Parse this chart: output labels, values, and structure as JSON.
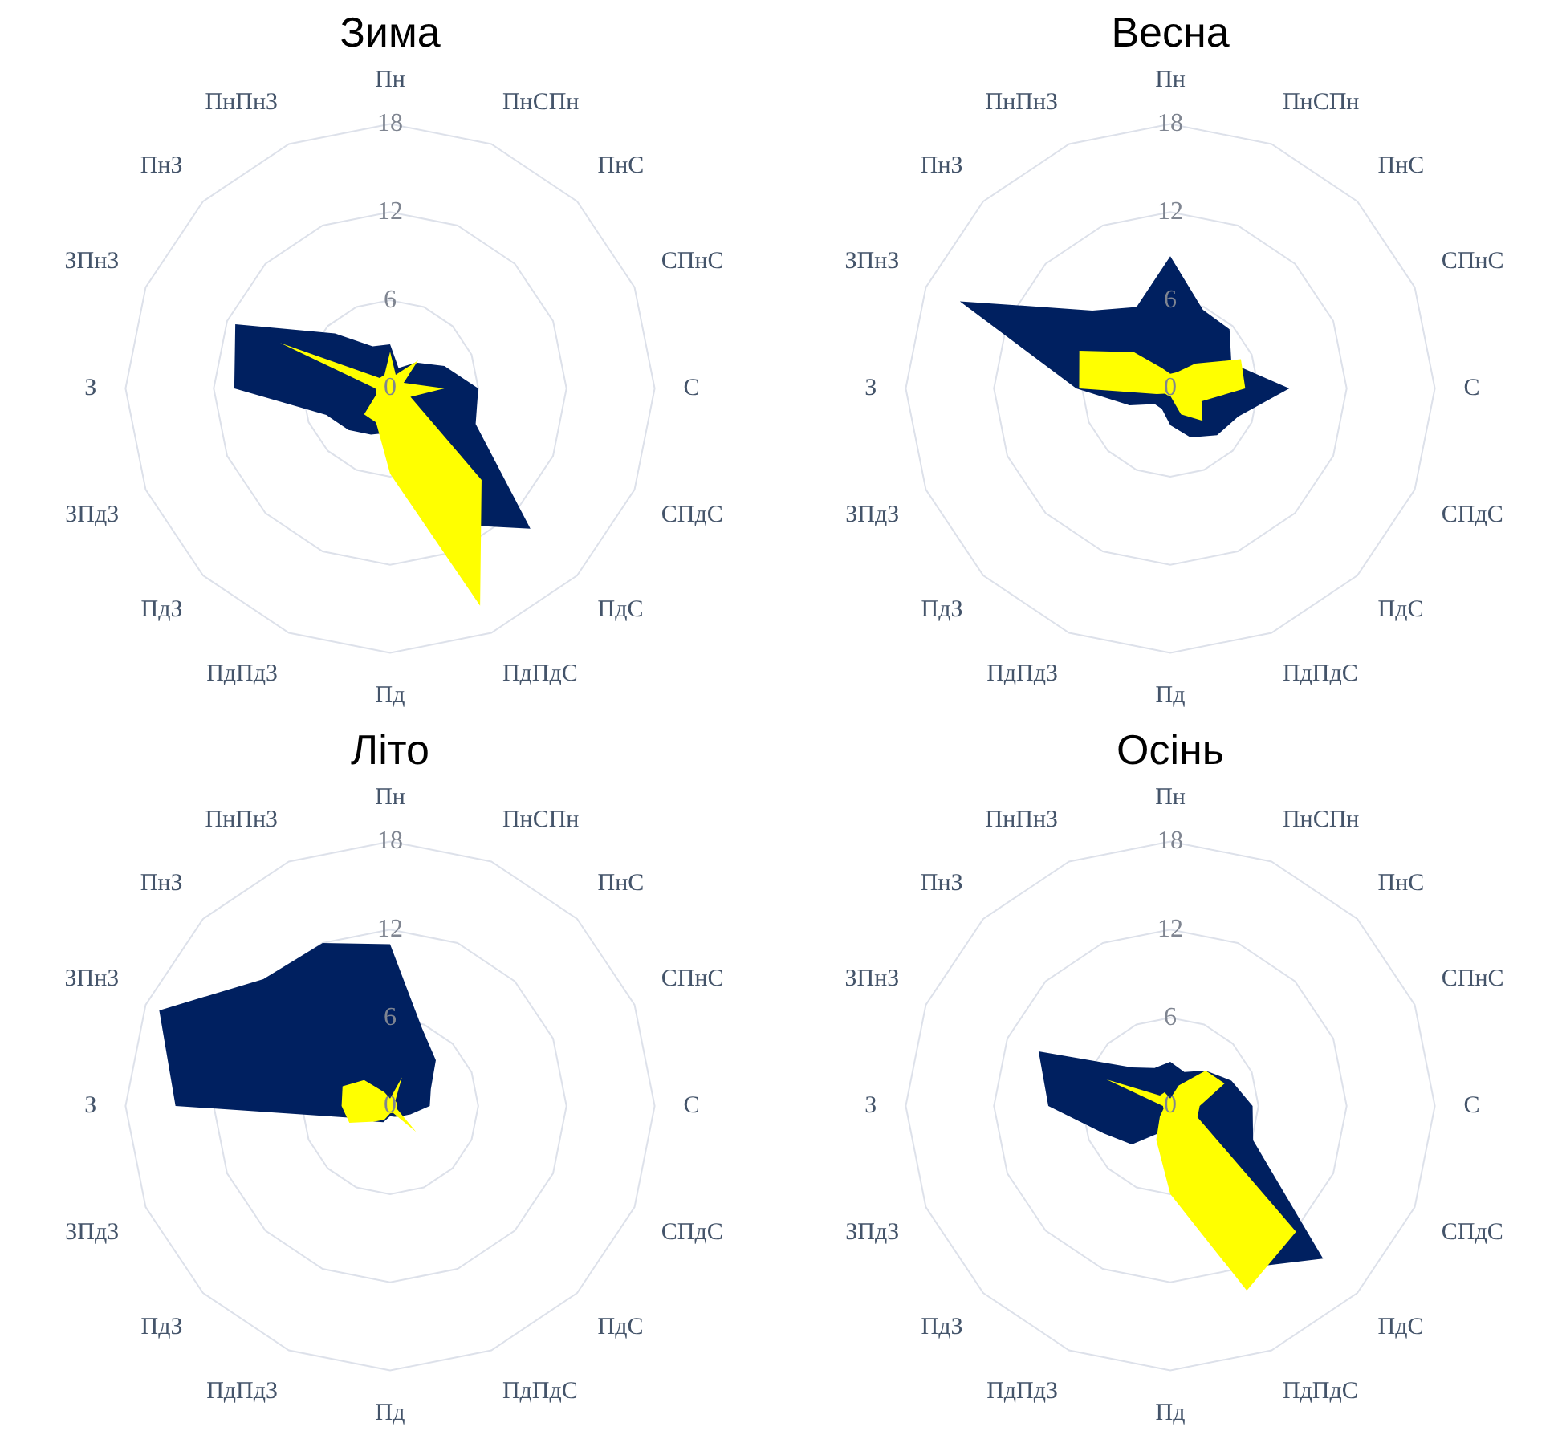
{
  "chart_data": [
    {
      "type": "radar",
      "title": "Зима",
      "categories": [
        "Пн",
        "ПнСПн",
        "ПнС",
        "СПнС",
        "С",
        "СПдС",
        "ПдС",
        "ПдПдС",
        "Пд",
        "ПдПдЗ",
        "ПдЗ",
        "ЗПдЗ",
        "З",
        "ЗПнЗ",
        "ПнЗ",
        "ПнПнЗ"
      ],
      "ylim": [
        0,
        18
      ],
      "yticks": [
        0,
        6,
        12,
        18
      ],
      "grid": true,
      "series": [
        {
          "color": "#002060",
          "values": [
            3,
            1.5,
            2.5,
            4,
            6,
            6.3,
            13.5,
            10,
            3,
            3.4,
            4,
            4.7,
            10.6,
            11.4,
            5.3,
            3.1
          ]
        },
        {
          "color": "#ffff00",
          "values": [
            2.5,
            1,
            2.7,
            1,
            3.7,
            1.5,
            8.8,
            16,
            5.8,
            2.5,
            2.5,
            1,
            1,
            8.1,
            1,
            1
          ]
        }
      ]
    },
    {
      "type": "radar",
      "title": "Весна",
      "categories": [
        "Пн",
        "ПнСПн",
        "ПнС",
        "СПнС",
        "С",
        "СПдС",
        "ПдС",
        "ПдПдС",
        "Пд",
        "ПдПдЗ",
        "ПдЗ",
        "ЗПдЗ",
        "З",
        "ЗПнЗ",
        "ПнЗ",
        "ПнПнЗ"
      ],
      "ylim": [
        0,
        18
      ],
      "yticks": [
        0,
        6,
        12,
        18
      ],
      "grid": true,
      "series": [
        {
          "color": "#002060",
          "values": [
            9,
            5.8,
            5.7,
            4.5,
            8.1,
            5,
            4.5,
            3.6,
            2.5,
            1.5,
            1.5,
            3,
            6.4,
            15.5,
            7.5,
            6
          ]
        },
        {
          "color": "#ffff00",
          "values": [
            1,
            1.2,
            2.4,
            5.2,
            5.1,
            2.3,
            3.1,
            1.9,
            0.5,
            0.5,
            0.5,
            1,
            6.2,
            6.7,
            3.5,
            1.5
          ]
        }
      ]
    },
    {
      "type": "radar",
      "title": "Літо",
      "categories": [
        "Пн",
        "ПнСПн",
        "ПнС",
        "СПнС",
        "С",
        "СПдС",
        "ПдС",
        "ПдПдС",
        "Пд",
        "ПдПдЗ",
        "ПдЗ",
        "ЗПдЗ",
        "З",
        "ЗПнЗ",
        "ПнЗ",
        "ПнПнЗ"
      ],
      "ylim": [
        0,
        18
      ],
      "yticks": [
        0,
        6,
        12,
        18
      ],
      "grid": true,
      "series": [
        {
          "color": "#002060",
          "values": [
            11,
            5.7,
            4.4,
            3,
            2.7,
            1.5,
            1,
            0.8,
            0.7,
            1.2,
            1.5,
            2.2,
            14.6,
            17,
            12.2,
            12
          ]
        },
        {
          "color": "#ffff00",
          "values": [
            0.5,
            2.1,
            0.5,
            0.5,
            0.5,
            0.5,
            2.5,
            0.5,
            0.5,
            1,
            1.5,
            3,
            3.3,
            3.5,
            2.5,
            1
          ]
        }
      ]
    },
    {
      "type": "radar",
      "title": "Осінь",
      "categories": [
        "Пн",
        "ПнСПн",
        "ПнС",
        "СПнС",
        "С",
        "СПдС",
        "ПдС",
        "ПдПдС",
        "Пд",
        "ПдПдЗ",
        "ПдЗ",
        "ЗПдЗ",
        "З",
        "ЗПнЗ",
        "ПнЗ",
        "ПнПнЗ"
      ],
      "ylim": [
        0,
        18
      ],
      "yticks": [
        0,
        6,
        12,
        18
      ],
      "grid": true,
      "series": [
        {
          "color": "#002060",
          "values": [
            3,
            2.5,
            3.4,
            4.5,
            5.6,
            6.1,
            14.7,
            12,
            3.5,
            2,
            3.7,
            4.9,
            8.3,
            9.7,
            3.7,
            2.8
          ]
        },
        {
          "color": "#ffff00",
          "values": [
            0.5,
            1.5,
            3.4,
            4,
            2,
            2,
            12.1,
            13.6,
            6,
            2.5,
            1,
            0.5,
            0.5,
            4.7,
            1,
            1
          ]
        }
      ]
    }
  ]
}
